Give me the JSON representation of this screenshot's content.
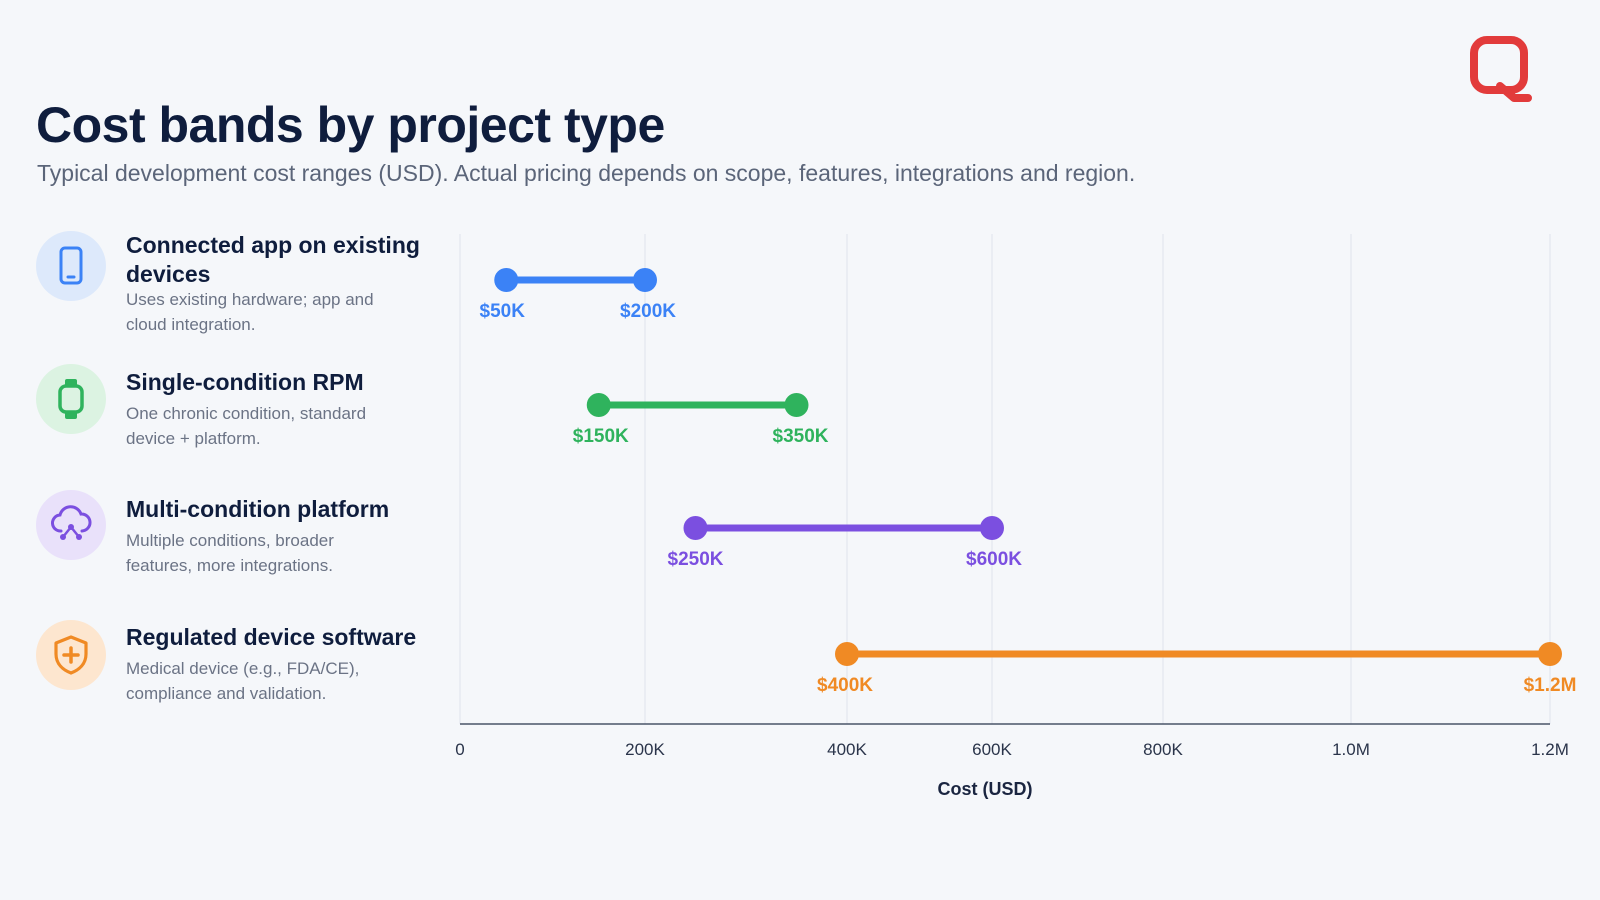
{
  "title": "Cost bands by project type",
  "subtitle": "Typical development cost ranges (USD). Actual pricing depends on scope, features, integrations and region.",
  "logo_icon": "q-chat-logo",
  "categories": [
    {
      "title": "Connected app on existing devices",
      "description": "Uses existing hardware; app and cloud integration.",
      "icon": "smartphone-icon",
      "color": "#3b82f6",
      "badge_bg": "#dde9fb"
    },
    {
      "title": "Single-condition RPM",
      "description": "One chronic condition, standard device + platform.",
      "icon": "smartwatch-icon",
      "color": "#2fb35d",
      "badge_bg": "#dcf3e2"
    },
    {
      "title": "Multi-condition platform",
      "description": "Multiple conditions, broader features, more integrations.",
      "icon": "cloud-network-icon",
      "color": "#7b4fe0",
      "badge_bg": "#e9e1fa"
    },
    {
      "title": "Regulated device software",
      "description": "Medical device (e.g., FDA/CE), compliance and validation.",
      "icon": "shield-plus-icon",
      "color": "#f08a24",
      "badge_bg": "#fde6cf"
    }
  ],
  "chart_data": {
    "type": "range",
    "xlabel": "Cost (USD)",
    "xticks": [
      "0",
      "200K",
      "400K",
      "600K",
      "800K",
      "1.0M",
      "1.2M"
    ],
    "series": [
      {
        "name": "Connected app on existing devices",
        "min": 50000,
        "max": 200000,
        "min_label": "$50K",
        "max_label": "$200K",
        "color": "#3b82f6"
      },
      {
        "name": "Single-condition RPM",
        "min": 150000,
        "max": 350000,
        "min_label": "$150K",
        "max_label": "$350K",
        "color": "#2fb35d"
      },
      {
        "name": "Multi-condition platform",
        "min": 250000,
        "max": 600000,
        "min_label": "$250K",
        "max_label": "$600K",
        "color": "#7b4fe0"
      },
      {
        "name": "Regulated device software",
        "min": 400000,
        "max": 1200000,
        "min_label": "$400K",
        "max_label": "$1.2M",
        "color": "#f08a24"
      }
    ]
  }
}
